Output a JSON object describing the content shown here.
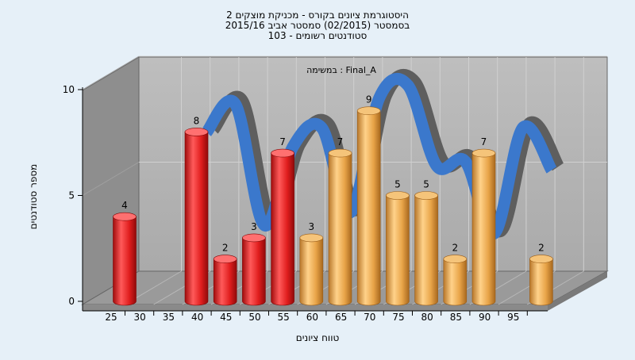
{
  "header": {
    "title_line1": "היסטוגרמת ציונים בקורס - מכניקת מוצקים 2",
    "title_line2": "בסמסטר  (02/2015)  סמסטר אביב 2015/16",
    "title_line3": "סטודנטים רשומים - 103"
  },
  "colors": {
    "background": "#e6f0f8",
    "wall": "#b4b4b4",
    "side_wall": "#8e8e8e",
    "floor": "#9a9a9a",
    "failing_bar": "#e02424",
    "passing_bar": "#e8a448",
    "curve": "#3b78cc",
    "curve_shadow": "#5e5e5e"
  },
  "chart_data": {
    "type": "bar",
    "title": "",
    "subtitle": "במשימה : Final_A",
    "xlabel": "טווח ציונים",
    "ylabel": "מספר סטודנטים",
    "ylim": [
      0,
      10
    ],
    "yticks": [
      "0",
      "5",
      "10"
    ],
    "xticks": [
      "25",
      "30",
      "35",
      "40",
      "45",
      "50",
      "55",
      "60",
      "65",
      "70",
      "75",
      "80",
      "85",
      "90",
      "95"
    ],
    "grid": true,
    "bars": [
      {
        "grade": 25,
        "value": 4,
        "label": "4",
        "status": "fail"
      },
      {
        "grade": 37.5,
        "value": 8,
        "label": "8",
        "status": "fail"
      },
      {
        "grade": 42.5,
        "value": 2,
        "label": "2",
        "status": "fail"
      },
      {
        "grade": 47.5,
        "value": 3,
        "label": "3",
        "status": "fail"
      },
      {
        "grade": 52.5,
        "value": 7,
        "label": "7",
        "status": "fail"
      },
      {
        "grade": 57.5,
        "value": 3,
        "label": "3",
        "status": "pass"
      },
      {
        "grade": 62.5,
        "value": 7,
        "label": "7",
        "status": "pass"
      },
      {
        "grade": 67.5,
        "value": 9,
        "label": "9",
        "status": "pass"
      },
      {
        "grade": 72.5,
        "value": 5,
        "label": "5",
        "status": "pass"
      },
      {
        "grade": 77.5,
        "value": 5,
        "label": "5",
        "status": "pass"
      },
      {
        "grade": 82.5,
        "value": 2,
        "label": "2",
        "status": "pass"
      },
      {
        "grade": 87.5,
        "value": 7,
        "label": "7",
        "status": "pass"
      },
      {
        "grade": 97.5,
        "value": 2,
        "label": "2",
        "status": "pass"
      }
    ],
    "curve": {
      "type": "line",
      "x": [
        37.5,
        42.5,
        47.5,
        52.5,
        57.5,
        62.5,
        67.5,
        72.5,
        77.5,
        82.5,
        87.5,
        92.5,
        97.5
      ],
      "y": [
        8,
        9.3,
        3.6,
        7.3,
        8.2,
        4.2,
        9.6,
        10.2,
        6.4,
        6.6,
        3.2,
        8.2,
        6.2
      ]
    }
  }
}
